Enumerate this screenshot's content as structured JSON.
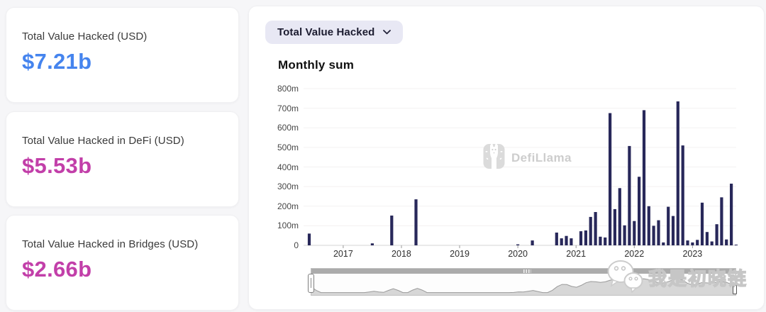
{
  "stat_cards": [
    {
      "label": "Total Value Hacked (USD)",
      "value": "$7.21b",
      "value_color": "#4584ee"
    },
    {
      "label": "Total Value Hacked in DeFi (USD)",
      "value": "$5.53b",
      "value_color": "#c23fa9"
    },
    {
      "label": "Total Value Hacked in Bridges (USD)",
      "value": "$2.66b",
      "value_color": "#c23fa9"
    }
  ],
  "chart_panel": {
    "dropdown": {
      "label": "Total Value Hacked",
      "icon": "chevron-down-icon"
    },
    "title": "Monthly sum",
    "brand_watermark": {
      "icon": "defillama-llama-logo",
      "text": "DefiLlama"
    },
    "overlay_watermark": {
      "icon": "wechat-icon",
      "text": "我是初晓链"
    }
  },
  "chart_data": {
    "type": "bar",
    "title": "Monthly sum",
    "unit": "USD, m = millions",
    "x_start": "2016-06",
    "x_interval": "monthly",
    "values": [
      60,
      0,
      0,
      0,
      0,
      0,
      0,
      0,
      0,
      0,
      0,
      0,
      0,
      10,
      0,
      0,
      0,
      152,
      0,
      0,
      0,
      0,
      235,
      0,
      0,
      0,
      0,
      0,
      0,
      0,
      0,
      0,
      0,
      0,
      0,
      0,
      0,
      0,
      0,
      0,
      0,
      0,
      0,
      5,
      0,
      0,
      25,
      0,
      0,
      0,
      0,
      65,
      36,
      48,
      36,
      0,
      72,
      76,
      145,
      170,
      44,
      40,
      675,
      185,
      292,
      102,
      507,
      124,
      350,
      690,
      200,
      100,
      128,
      15,
      197,
      150,
      735,
      510,
      25,
      15,
      28,
      218,
      68,
      20,
      108,
      245,
      30,
      315,
      3
    ],
    "ylim": [
      0,
      800
    ],
    "yticks": [
      "0",
      "100m",
      "200m",
      "300m",
      "400m",
      "500m",
      "600m",
      "700m",
      "800m"
    ],
    "xticks": [
      {
        "label": "2017",
        "month_index": 7
      },
      {
        "label": "2018",
        "month_index": 19
      },
      {
        "label": "2019",
        "month_index": 31
      },
      {
        "label": "2020",
        "month_index": 43
      },
      {
        "label": "2021",
        "month_index": 55
      },
      {
        "label": "2022",
        "month_index": 67
      },
      {
        "label": "2023",
        "month_index": 79
      }
    ],
    "bar_color": "#28285a",
    "grid": "horizontal-only",
    "legend": "none",
    "has_range_slider": true
  }
}
